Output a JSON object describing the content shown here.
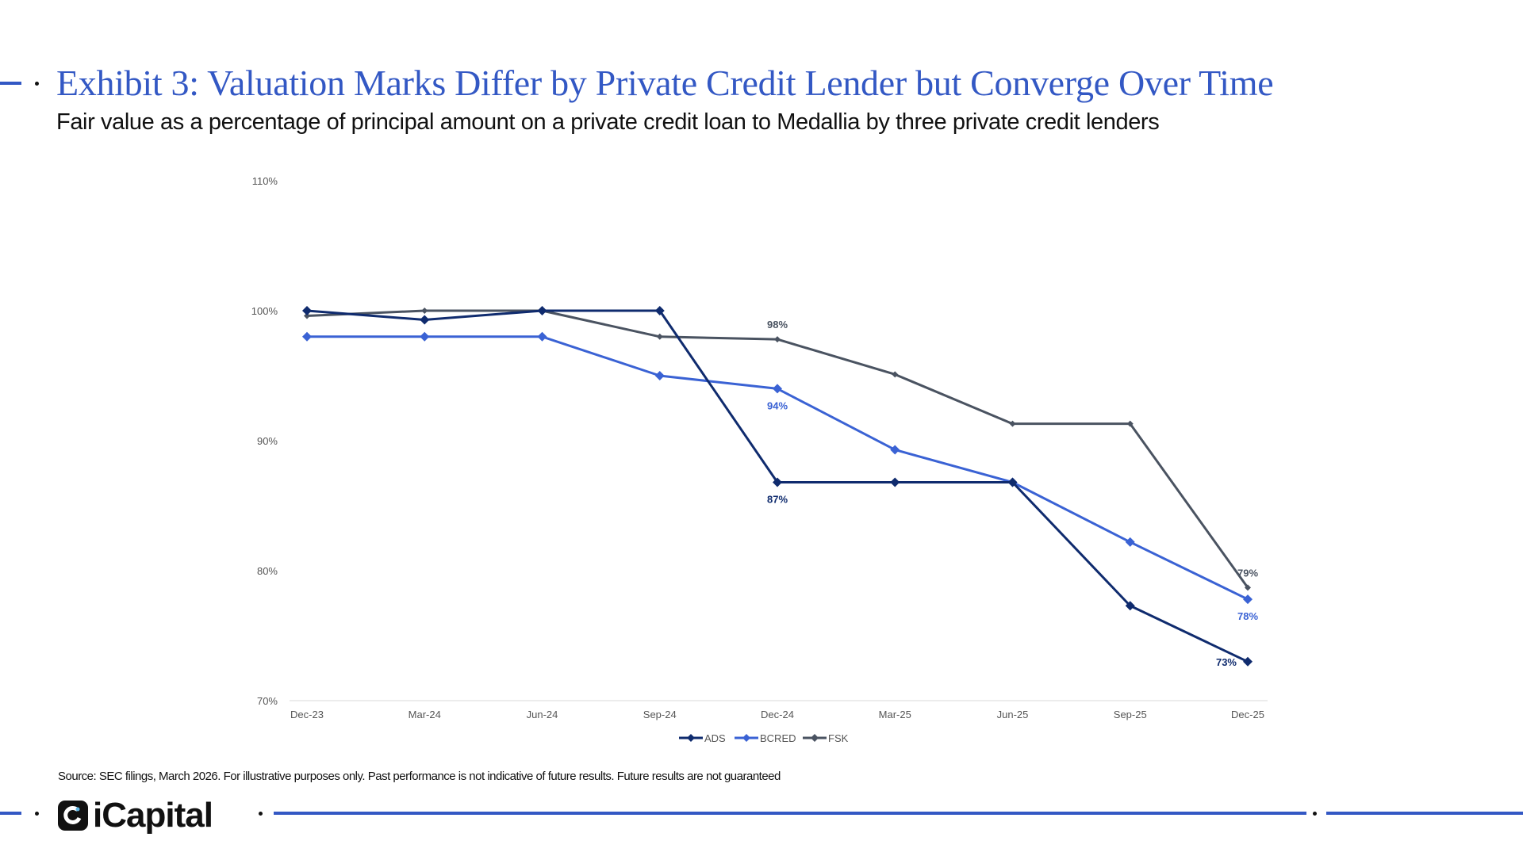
{
  "title": "Exhibit 3: Valuation Marks Differ by Private Credit Lender but Converge Over Time",
  "subtitle": "Fair value as a percentage of principal amount on a private credit loan to Medallia by three private credit lenders",
  "source": "Source: SEC filings, March 2026. For illustrative purposes only. Past performance is not indicative of future results. Future results are not guaranteed",
  "logo": "iCapital",
  "accent_color": "#3358c4",
  "chart_data": {
    "type": "line",
    "categories": [
      "Dec-23",
      "Mar-24",
      "Jun-24",
      "Sep-24",
      "Dec-24",
      "Mar-25",
      "Jun-25",
      "Sep-25",
      "Dec-25"
    ],
    "ylim": [
      70,
      110
    ],
    "yticks": [
      70,
      80,
      90,
      100,
      110
    ],
    "ytick_labels": [
      "70%",
      "80%",
      "90%",
      "100%",
      "110%"
    ],
    "grid": false,
    "legend": "bottom",
    "series": [
      {
        "name": "ADS",
        "color": "#0f2b6e",
        "marker": "diamond",
        "values": [
          100,
          99.3,
          100,
          100,
          86.8,
          86.8,
          86.8,
          77.3,
          73.0
        ],
        "labels": [
          {
            "index": 4,
            "text": "87%",
            "pos": "below"
          },
          {
            "index": 8,
            "text": "73%",
            "pos": "left"
          }
        ]
      },
      {
        "name": "BCRED",
        "color": "#3a62d4",
        "marker": "diamond",
        "values": [
          98,
          98,
          98,
          95.0,
          94.0,
          89.3,
          86.8,
          82.2,
          77.8
        ],
        "labels": [
          {
            "index": 4,
            "text": "94%",
            "pos": "below"
          },
          {
            "index": 8,
            "text": "78%",
            "pos": "below"
          }
        ]
      },
      {
        "name": "FSK",
        "color": "#4a5361",
        "marker": "diamond",
        "values": [
          99.6,
          100,
          100,
          98.0,
          97.8,
          95.1,
          91.3,
          91.3,
          78.7
        ],
        "labels": [
          {
            "index": 4,
            "text": "98%",
            "pos": "above"
          },
          {
            "index": 8,
            "text": "79%",
            "pos": "above"
          }
        ]
      }
    ]
  }
}
